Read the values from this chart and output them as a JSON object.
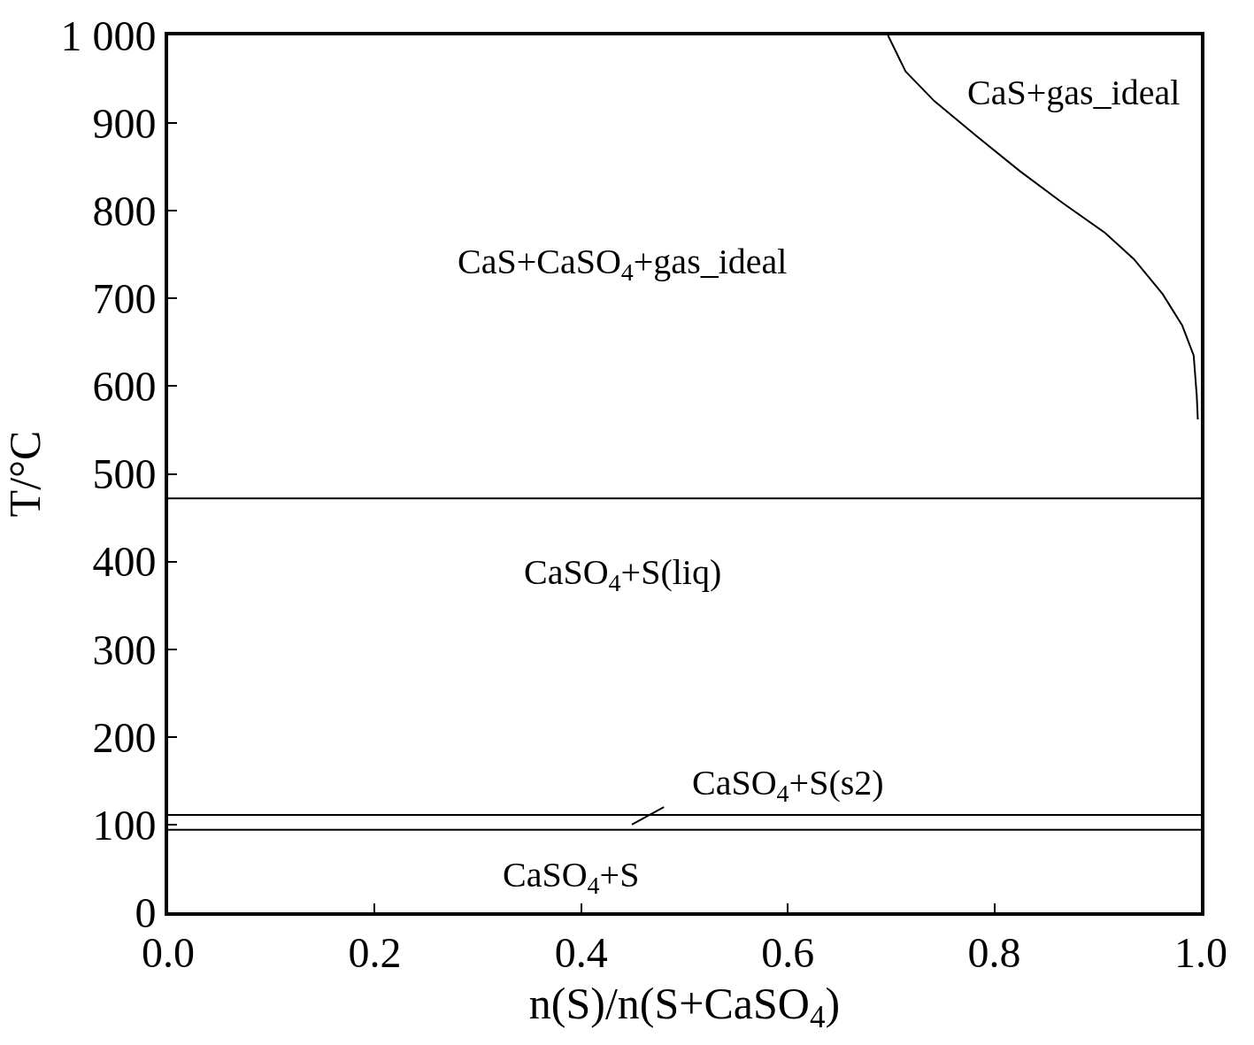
{
  "chart_data": {
    "type": "line",
    "xlabel": "n(S)/n(S+CaSO$_{4}$)",
    "ylabel": "T/°C",
    "xlim": [
      0,
      1
    ],
    "ylim": [
      0,
      1000
    ],
    "xticks": [
      {
        "value": 0,
        "label": "0.0"
      },
      0.2,
      0.4,
      0.6,
      0.8,
      {
        "value": 1,
        "label": "1.0"
      }
    ],
    "yticks": [
      0,
      100,
      200,
      300,
      400,
      500,
      600,
      700,
      800,
      900,
      {
        "value": 1000,
        "label": "1 000"
      }
    ],
    "series": [
      {
        "color": "#000000",
        "x": [
          0.697,
          0.714,
          0.742,
          0.783,
          0.825,
          0.866,
          0.907,
          0.935,
          0.963,
          0.982,
          0.993,
          0.996,
          0.997
        ],
        "values": [
          1000,
          959,
          925,
          885,
          845,
          809,
          775,
          745,
          705,
          669,
          635,
          589,
          562
        ]
      },
      {
        "color": "#000000",
        "x": [
          0,
          1
        ],
        "values": [
          472,
          472
        ]
      },
      {
        "color": "#000000",
        "x": [
          0,
          1
        ],
        "values": [
          111,
          111
        ]
      },
      {
        "color": "#000000",
        "x": [
          0,
          1
        ],
        "values": [
          94,
          94
        ]
      },
      {
        "color": "#000000",
        "x": [
          0.449,
          0.48
        ],
        "values": [
          100,
          120
        ]
      }
    ],
    "annotations": [
      "CaS+gas_ideal",
      "CaS+CaSO$_{4}$+gas_ideal",
      "CaSO$_{4}$+S(liq)",
      "CaSO$_{4}$+S(s2)",
      "CaSO$_{4}$+S"
    ],
    "marker": "none",
    "line_style": "solid"
  }
}
